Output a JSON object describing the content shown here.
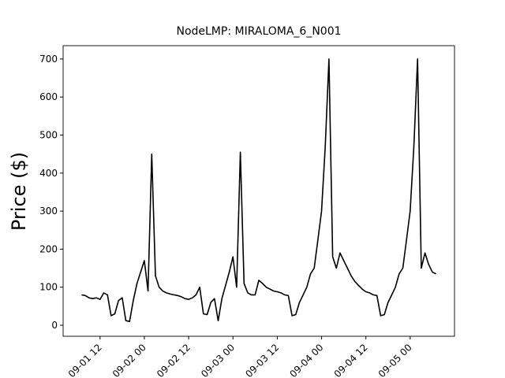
{
  "chart_data": {
    "type": "line",
    "title": "NodeLMP: MIRALOMA_6_N001",
    "y_label": "Price ($)",
    "x": [
      "09-01 07",
      "09-01 08",
      "09-01 09",
      "09-01 10",
      "09-01 11",
      "09-01 12",
      "09-01 13",
      "09-01 14",
      "09-01 15",
      "09-01 16",
      "09-01 17",
      "09-01 18",
      "09-01 19",
      "09-01 20",
      "09-01 21",
      "09-01 22",
      "09-01 23",
      "09-02 00",
      "09-02 01",
      "09-02 02",
      "09-02 03",
      "09-02 04",
      "09-02 05",
      "09-02 06",
      "09-02 07",
      "09-02 08",
      "09-02 09",
      "09-02 10",
      "09-02 11",
      "09-02 12",
      "09-02 13",
      "09-02 14",
      "09-02 15",
      "09-02 16",
      "09-02 17",
      "09-02 18",
      "09-02 19",
      "09-02 20",
      "09-02 21",
      "09-02 22",
      "09-02 23",
      "09-03 00",
      "09-03 01",
      "09-03 02",
      "09-03 03",
      "09-03 04",
      "09-03 05",
      "09-03 06",
      "09-03 07",
      "09-03 08",
      "09-03 09",
      "09-03 10",
      "09-03 11",
      "09-03 12",
      "09-03 13",
      "09-03 14",
      "09-03 15",
      "09-03 16",
      "09-03 17",
      "09-03 18",
      "09-03 19",
      "09-03 20",
      "09-03 21",
      "09-03 22",
      "09-03 23",
      "09-04 00",
      "09-04 01",
      "09-04 02",
      "09-04 03",
      "09-04 04",
      "09-04 05",
      "09-04 06",
      "09-04 07",
      "09-04 08",
      "09-04 09",
      "09-04 10",
      "09-04 11",
      "09-04 12",
      "09-04 13",
      "09-04 14",
      "09-04 15",
      "09-04 16",
      "09-04 17",
      "09-04 18",
      "09-04 19",
      "09-04 20",
      "09-04 21",
      "09-04 22",
      "09-04 23",
      "09-05 00",
      "09-05 01",
      "09-05 02",
      "09-05 03",
      "09-05 04",
      "09-05 05",
      "09-05 06",
      "09-05 07"
    ],
    "series": [
      {
        "color": "#000000",
        "values": [
          80,
          78,
          72,
          70,
          72,
          68,
          85,
          80,
          25,
          30,
          65,
          72,
          12,
          10,
          65,
          110,
          140,
          170,
          90,
          450,
          130,
          100,
          90,
          85,
          82,
          80,
          78,
          75,
          70,
          68,
          72,
          80,
          100,
          30,
          28,
          60,
          70,
          12,
          70,
          105,
          140,
          180,
          100,
          455,
          110,
          85,
          80,
          80,
          118,
          110,
          100,
          95,
          90,
          88,
          85,
          80,
          78,
          25,
          28,
          60,
          80,
          100,
          135,
          150,
          225,
          300,
          470,
          700,
          180,
          150,
          190,
          170,
          150,
          130,
          115,
          105,
          95,
          88,
          85,
          80,
          78,
          25,
          28,
          60,
          80,
          100,
          135,
          150,
          225,
          300,
          470,
          700,
          150,
          190,
          160,
          140,
          135
        ]
      }
    ],
    "xlim": [
      "09-01 02",
      "09-05 12"
    ],
    "xticks": [
      "09-01 12",
      "09-02 00",
      "09-02 12",
      "09-03 00",
      "09-03 12",
      "09-04 00",
      "09-04 12",
      "09-05 00"
    ],
    "ylim": [
      -29,
      735
    ],
    "yticks": [
      0,
      100,
      200,
      300,
      400,
      500,
      600,
      700
    ]
  }
}
